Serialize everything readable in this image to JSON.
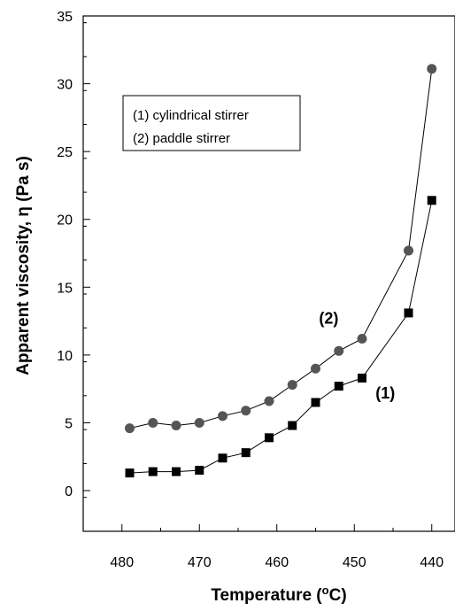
{
  "chart_data": {
    "type": "line",
    "xlabel": "Temperature (",
    "xlabel_sup": "o",
    "xlabel_end": "C)",
    "ylabel": "Apparent viscosity, η  (Pa s)",
    "xlim": [
      485,
      437
    ],
    "ylim": [
      -3,
      35
    ],
    "x_reversed": true,
    "x_ticks": [
      480,
      470,
      460,
      450,
      440
    ],
    "y_ticks": [
      0,
      5,
      10,
      15,
      20,
      25,
      30,
      35
    ],
    "legend": {
      "placement": "top-left",
      "entries": [
        "(1) cylindrical stirrer",
        "(2) paddle stirrer"
      ]
    },
    "series": [
      {
        "label": "(1)",
        "marker": "square",
        "color": "#000000",
        "x": [
          479,
          476,
          473,
          470,
          467,
          464,
          461,
          458,
          455,
          452,
          449,
          443,
          440
        ],
        "y": [
          1.3,
          1.4,
          1.4,
          1.5,
          2.4,
          2.8,
          3.9,
          4.8,
          6.5,
          7.7,
          8.3,
          13.1,
          21.4
        ]
      },
      {
        "label": "(2)",
        "marker": "circle",
        "color": "#555555",
        "x": [
          479,
          476,
          473,
          470,
          467,
          464,
          461,
          458,
          455,
          452,
          449,
          443,
          440
        ],
        "y": [
          4.6,
          5.0,
          4.8,
          5.0,
          5.5,
          5.9,
          6.6,
          7.8,
          9.0,
          10.3,
          11.2,
          17.7,
          31.1
        ]
      }
    ],
    "annotations": [
      {
        "text": "(2)",
        "x": 453.3,
        "y": 12.3
      },
      {
        "text": "(1)",
        "x": 446.0,
        "y": 6.8
      }
    ]
  }
}
